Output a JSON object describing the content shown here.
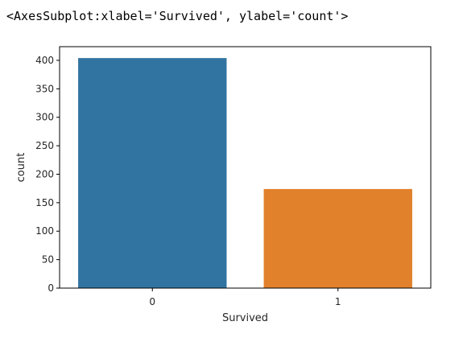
{
  "output_repr": "<AxesSubplot:xlabel='Survived', ylabel='count'>",
  "chart_data": {
    "type": "bar",
    "categories": [
      "0",
      "1"
    ],
    "values": [
      404,
      174
    ],
    "xlabel": "Survived",
    "ylabel": "count",
    "ylim": [
      0,
      424
    ],
    "yticks": [
      0,
      50,
      100,
      150,
      200,
      250,
      300,
      350,
      400
    ],
    "colors": [
      "#3274a1",
      "#e1812c"
    ],
    "grid": false,
    "legend": "none"
  }
}
